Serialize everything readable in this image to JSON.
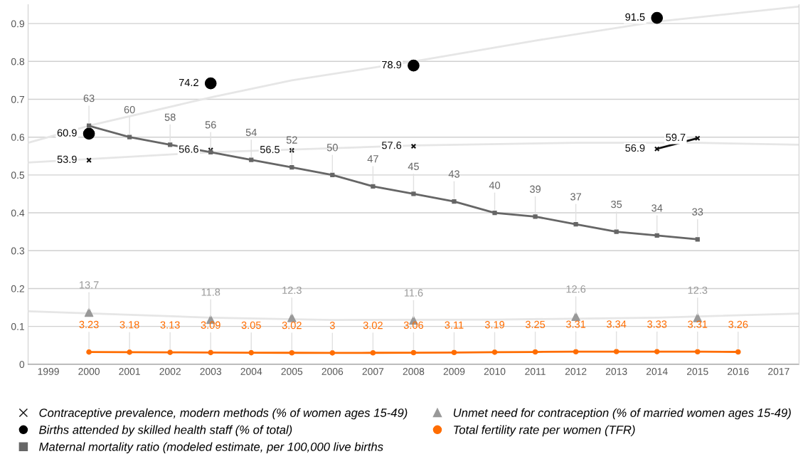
{
  "chart_data": {
    "type": "line",
    "x": [
      2000,
      2001,
      2002,
      2003,
      2004,
      2005,
      2006,
      2007,
      2008,
      2009,
      2010,
      2011,
      2012,
      2013,
      2014,
      2015
    ],
    "xlim": [
      1998.5,
      2017.5
    ],
    "xticks": [
      1999,
      2000,
      2001,
      2002,
      2003,
      2004,
      2005,
      2006,
      2007,
      2008,
      2009,
      2010,
      2011,
      2012,
      2013,
      2014,
      2015,
      2016,
      2017
    ],
    "ylim": [
      0,
      0.95
    ],
    "yticks": [
      0,
      0.1,
      0.2,
      0.3,
      0.4,
      0.5,
      0.6,
      0.7,
      0.8,
      0.9
    ],
    "y2lim": [
      0,
      95
    ],
    "grid": "y",
    "legend": "bottom",
    "series": [
      {
        "x": [
          1998.5,
          2000,
          2003,
          2005,
          2008,
          2011,
          2014,
          2017.5
        ],
        "color": "#e6e6e6",
        "marker": "none",
        "values": [
          0.585,
          0.63,
          0.705,
          0.75,
          0.8,
          0.855,
          0.905,
          0.945
        ]
      },
      {
        "x": [
          1998.5,
          2003,
          2008,
          2012,
          2015,
          2017.5
        ],
        "color": "#e6e6e6",
        "marker": "none",
        "values": [
          0.533,
          0.56,
          0.578,
          0.585,
          0.585,
          0.58
        ]
      },
      {
        "x": [
          1998.5,
          2003,
          2006,
          2010,
          2014,
          2017.5
        ],
        "color": "#e6e6e6",
        "marker": "none",
        "values": [
          0.14,
          0.123,
          0.117,
          0.118,
          0.123,
          0.134
        ]
      },
      {
        "name": "Contraceptive prevalence, modern methods (% of women ages 15-49)",
        "axis": "y2",
        "color": "#111111",
        "marker": "cross",
        "values": [
          53.9,
          null,
          null,
          56.6,
          null,
          56.5,
          null,
          null,
          57.6,
          null,
          null,
          null,
          null,
          null,
          56.9,
          59.7
        ],
        "value_labels": [
          "53.9",
          null,
          null,
          "56.6",
          null,
          "56.5",
          null,
          null,
          "57.6",
          null,
          null,
          null,
          null,
          null,
          "56.9",
          "59.7"
        ]
      },
      {
        "name": "Births attended by skilled health staff (% of total)",
        "type": "scatter",
        "axis": "y2",
        "color": "#000000",
        "marker": "circle",
        "values": [
          60.9,
          null,
          null,
          74.2,
          null,
          null,
          null,
          null,
          78.9,
          null,
          null,
          null,
          null,
          null,
          91.5,
          null
        ],
        "value_labels": [
          "60.9",
          null,
          null,
          "74.2",
          null,
          null,
          null,
          null,
          "78.9",
          null,
          null,
          null,
          null,
          null,
          "91.5",
          null
        ]
      },
      {
        "name": "Maternal mortality ratio (modeled estimate, per 100,000 live births",
        "axis": "y2",
        "color": "#666666",
        "marker": "square",
        "values": [
          63,
          60,
          58,
          56,
          54,
          52,
          50,
          47,
          45,
          43,
          40,
          39,
          37,
          35,
          34,
          33
        ],
        "value_labels": [
          "63",
          "60",
          "58",
          "56",
          "54",
          "52",
          "50",
          "47",
          "45",
          "43",
          "40",
          "39",
          "37",
          "35",
          "34",
          "33"
        ]
      },
      {
        "name": "Unmet need for contraception (% of married women ages 15-49)",
        "type": "scatter",
        "axis": "y2",
        "color": "#999999",
        "marker": "triangle",
        "values": [
          13.7,
          null,
          null,
          11.8,
          null,
          12.3,
          null,
          null,
          11.6,
          null,
          null,
          null,
          12.6,
          null,
          null,
          12.3
        ],
        "value_labels": [
          "13.7",
          null,
          null,
          "11.8",
          null,
          "12.3",
          null,
          null,
          "11.6",
          null,
          null,
          null,
          "12.6",
          null,
          null,
          "12.3"
        ]
      },
      {
        "name": "Total fertility rate per women (TFR)",
        "axis": "y2",
        "color": "#ff6d01",
        "marker": "circle",
        "x": [
          2000,
          2001,
          2002,
          2003,
          2004,
          2005,
          2006,
          2007,
          2008,
          2009,
          2010,
          2011,
          2012,
          2013,
          2014,
          2015,
          2016
        ],
        "values": [
          3.23,
          3.18,
          3.13,
          3.09,
          3.05,
          3.02,
          3,
          3.02,
          3.06,
          3.11,
          3.19,
          3.25,
          3.31,
          3.34,
          3.33,
          3.31,
          3.26
        ],
        "value_labels": [
          "3.23",
          "3.18",
          "3.13",
          "3.09",
          "3.05",
          "3.02",
          "3",
          "3.02",
          "3.06",
          "3.11",
          "3.19",
          "3.25",
          "3.31",
          "3.34",
          "3.33",
          "3.31",
          "3.26"
        ]
      }
    ]
  }
}
